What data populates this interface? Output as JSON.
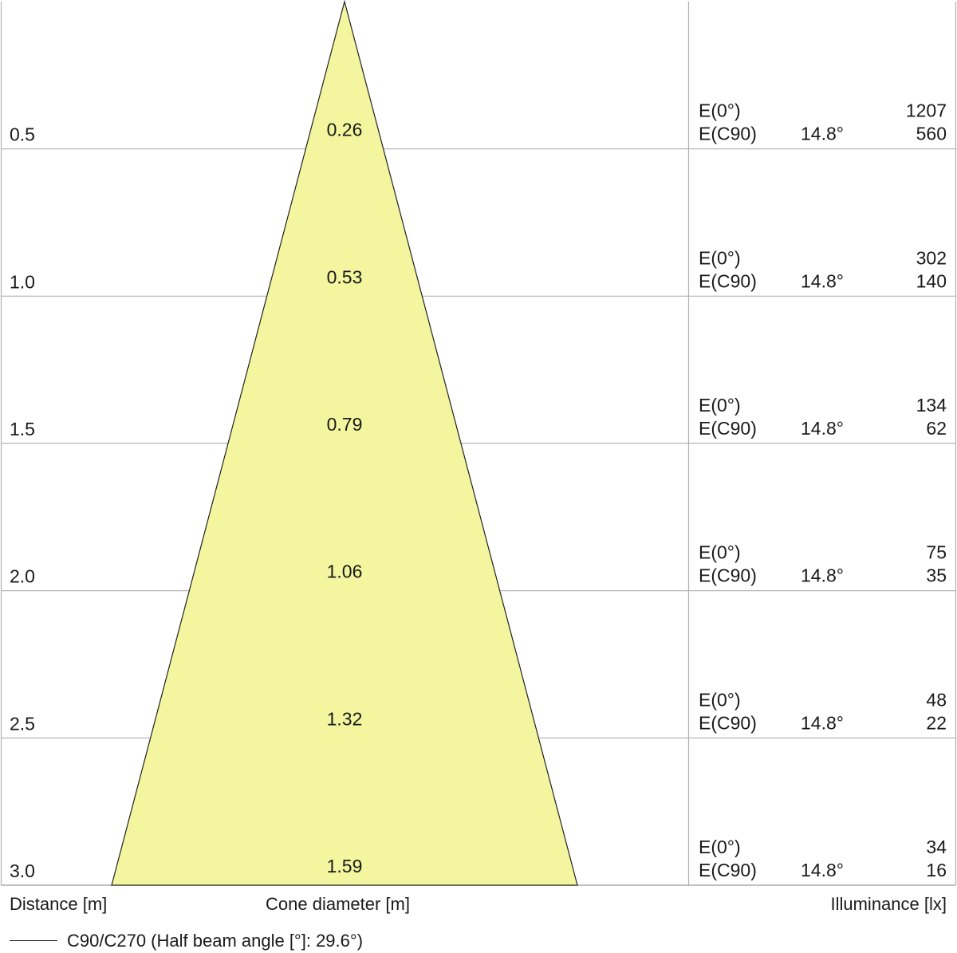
{
  "chart_data": {
    "type": "cone-diagram",
    "distances": [
      0.5,
      1.0,
      1.5,
      2.0,
      2.5,
      3.0
    ],
    "distance_labels": [
      "0.5",
      "1.0",
      "1.5",
      "2.0",
      "2.5",
      "3.0"
    ],
    "cone_diameters": [
      "0.26",
      "0.53",
      "0.79",
      "1.06",
      "1.32",
      "1.59"
    ],
    "e0_label": "E(0°)",
    "ec90_label": "E(C90)",
    "half_angle_label": "14.8°",
    "e0_values": [
      "1207",
      "302",
      "134",
      "75",
      "48",
      "34"
    ],
    "ec90_values": [
      "560",
      "140",
      "62",
      "35",
      "22",
      "16"
    ],
    "xlabel_left": "Distance [m]",
    "xlabel_center": "Cone diameter [m]",
    "xlabel_right": "Illuminance [lx]",
    "legend_label": "C90/C270 (Half beam angle [°]: 29.6°)",
    "cone_fill": "#f3f69e",
    "grid_color": "#b0b0b0"
  }
}
